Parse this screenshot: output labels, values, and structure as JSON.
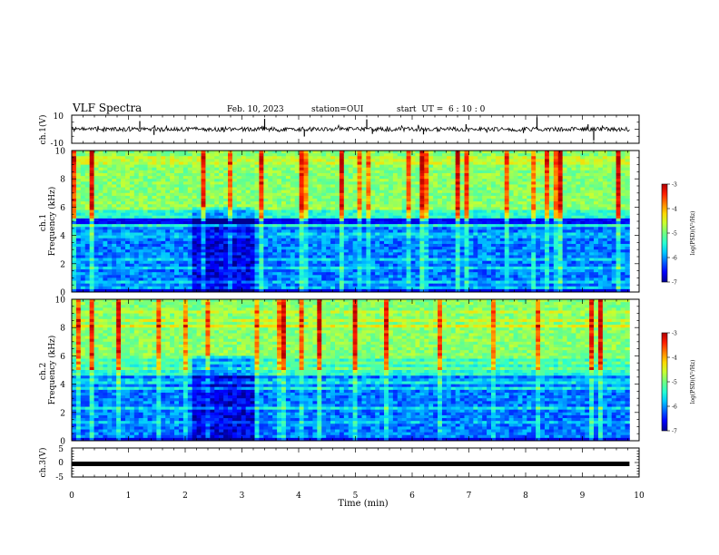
{
  "header": {
    "title": "VLF Spectra",
    "date": "Feb. 10, 2023",
    "station": "station=OUI",
    "start_ut": "start  UT =  6 : 10 : 0"
  },
  "colormap": [
    "#00008f",
    "#0000ff",
    "#0060ff",
    "#00c8ff",
    "#28ffd0",
    "#70ff80",
    "#c8ff30",
    "#ffd800",
    "#ff8000",
    "#ff1e00",
    "#b00000"
  ],
  "chart_data": [
    {
      "type": "line",
      "panel": "ch1-waveform",
      "ylabel": "ch.1(V)",
      "ylim": [
        -10,
        10
      ],
      "yticks": [
        "10",
        "-10"
      ],
      "xlim": [
        0,
        10
      ],
      "baseline": 0,
      "noise_amplitude": 1.5,
      "spike_x": [
        1.45,
        1.2,
        3.4,
        4.1,
        5.2,
        5.3,
        6.2,
        6.95,
        8.2,
        9.1,
        9.2
      ]
    },
    {
      "type": "heatmap",
      "panel": "ch1-spectrogram",
      "ylabel": "ch.1\nFrequency (kHz)",
      "ylim": [
        0,
        10
      ],
      "yticks": [
        "0",
        "2",
        "4",
        "6",
        "8",
        "10"
      ],
      "xlim": [
        0,
        10
      ],
      "colorbar": {
        "label": "log(PSD)(V²/Hz)",
        "range": [
          -7,
          -3
        ],
        "ticks": [
          "-3",
          "-4",
          "-5",
          "-6",
          "-7"
        ]
      },
      "description_values": {
        "quiet_band_kHz": [
          4.7,
          5.2
        ],
        "dark_interval_min": [
          2.1,
          3.2
        ]
      }
    },
    {
      "type": "heatmap",
      "panel": "ch2-spectrogram",
      "ylabel": "ch.2\nFrequency (kHz)",
      "ylim": [
        0,
        10
      ],
      "yticks": [
        "0",
        "2",
        "4",
        "6",
        "8",
        "10"
      ],
      "xlim": [
        0,
        10
      ],
      "colorbar": {
        "label": "log(PSD)(V²/Hz)",
        "range": [
          -7,
          -3
        ],
        "ticks": [
          "-3",
          "-4",
          "-5",
          "-6",
          "-7"
        ]
      },
      "description_values": {
        "dark_interval_min": [
          2.1,
          3.2
        ]
      }
    },
    {
      "type": "line",
      "panel": "ch3-waveform",
      "ylabel": "ch.3(V)",
      "ylim": [
        -5,
        5
      ],
      "yticks": [
        "5",
        "0",
        "-5"
      ],
      "xlim": [
        0,
        10
      ],
      "baseline": 0
    }
  ],
  "xaxis": {
    "label": "Time (min)",
    "ticks": [
      "0",
      "1",
      "2",
      "3",
      "4",
      "5",
      "6",
      "7",
      "8",
      "9",
      "10"
    ],
    "data_end_min": 9.83
  }
}
